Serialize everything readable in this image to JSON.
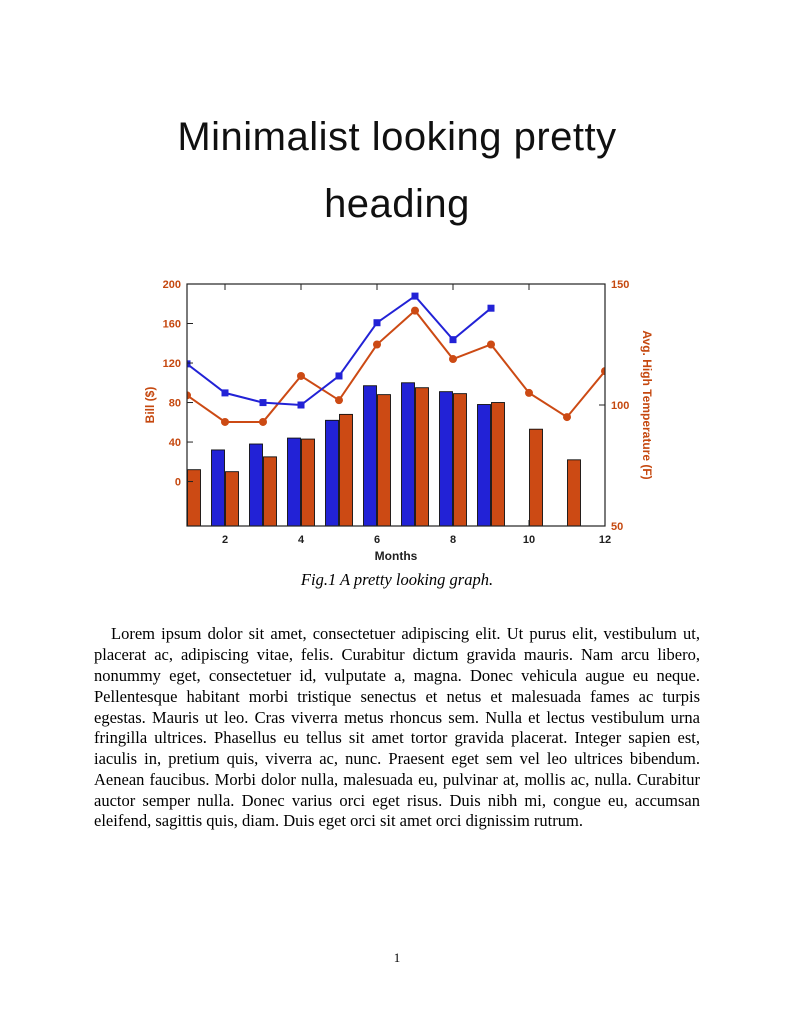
{
  "heading": {
    "line1": "Minimalist looking pretty",
    "line2": "heading"
  },
  "figure": {
    "caption": "Fig.1 A pretty looking graph."
  },
  "body": {
    "paragraph": "Lorem ipsum dolor sit amet, consectetuer adipiscing elit. Ut purus elit, vestibulum ut, placerat ac, adipiscing vitae, felis. Curabitur dictum gravida mauris. Nam arcu libero, nonummy eget, consectetuer id, vulputate a, magna. Donec vehicula augue eu neque. Pellentesque habitant morbi tristique senectus et netus et malesuada fames ac turpis egestas. Mauris ut leo. Cras viverra metus rhoncus sem. Nulla et lectus vestibulum urna fringilla ultrices. Phasellus eu tellus sit amet tortor gravida placerat. Integer sapien est, iaculis in, pretium quis, viverra ac, nunc. Praesent eget sem vel leo ultrices bibendum. Aenean faucibus. Morbi dolor nulla, malesuada eu, pulvinar at, mollis ac, nulla. Curabitur auctor semper nulla. Donec varius orci eget risus. Duis nibh mi, congue eu, accumsan eleifend, sagittis quis, diam. Duis eget orci sit amet orci dignissim rutrum."
  },
  "footer": {
    "page_number": "1"
  },
  "chart_data": {
    "type": "combo-bar-line",
    "x": [
      1,
      2,
      3,
      4,
      5,
      6,
      7,
      8,
      9,
      10,
      11,
      12
    ],
    "x_ticks": [
      2,
      4,
      6,
      8,
      10,
      12
    ],
    "xlim": [
      1,
      12
    ],
    "xlabel": "Months",
    "grid": false,
    "legend": "none",
    "left_axis": {
      "label": "Bill ($)",
      "ticks": [
        0,
        40,
        80,
        120,
        160,
        200
      ],
      "lim": [
        -45,
        200
      ],
      "color": "#c5480f"
    },
    "right_axis": {
      "label": "Avg. High Temperature (F)",
      "ticks": [
        50,
        100,
        150
      ],
      "lim": [
        50,
        150
      ],
      "color": "#c5480f"
    },
    "bar_series": [
      {
        "name": "bill-blue-bars",
        "axis": "left",
        "color": "#2222d6",
        "values": [
          3,
          32,
          38,
          44,
          62,
          97,
          100,
          91,
          78,
          null,
          null,
          null
        ]
      },
      {
        "name": "bill-orange-bars",
        "axis": "left",
        "color": "#cc4a14",
        "values": [
          12,
          10,
          25,
          43,
          68,
          88,
          95,
          89,
          80,
          53,
          22,
          -2
        ]
      }
    ],
    "line_series": [
      {
        "name": "temp-orange-line",
        "axis": "right",
        "color": "#cc4a14",
        "marker": "circle",
        "values": [
          104,
          93,
          93,
          112,
          102,
          125,
          139,
          119,
          125,
          105,
          95,
          114
        ]
      },
      {
        "name": "temp-blue-line",
        "axis": "right",
        "color": "#2222d6",
        "marker": "square",
        "values": [
          117,
          105,
          101,
          100,
          112,
          134,
          145,
          127,
          140,
          null,
          null,
          null
        ]
      }
    ]
  }
}
